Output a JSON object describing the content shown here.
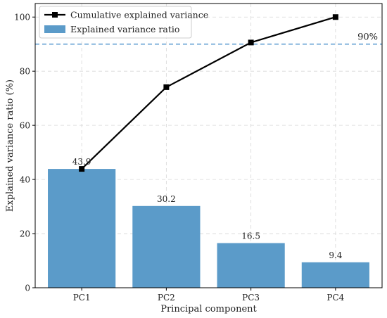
{
  "chart_data": {
    "type": "bar",
    "categories": [
      "PC1",
      "PC2",
      "PC3",
      "PC4"
    ],
    "series": [
      {
        "name": "Explained variance ratio",
        "kind": "bar",
        "values": [
          43.9,
          30.2,
          16.5,
          9.4
        ],
        "color": "#5b9bc9"
      },
      {
        "name": "Cumulative explained variance",
        "kind": "line",
        "marker": "square",
        "values": [
          43.9,
          74.1,
          90.6,
          100.0
        ],
        "color": "#000000"
      }
    ],
    "data_labels": [
      "43.9",
      "30.2",
      "16.5",
      "9.4"
    ],
    "reference_line": {
      "y": 90,
      "label": "90%",
      "style": "dashed",
      "color": "#3a86c8"
    },
    "xlabel": "Principal component",
    "ylabel": "Explained variance ratio (%)",
    "ylim": [
      0,
      105
    ],
    "yticks": [
      0,
      20,
      40,
      60,
      80,
      100
    ],
    "grid": true,
    "legend_position": "top-left"
  }
}
